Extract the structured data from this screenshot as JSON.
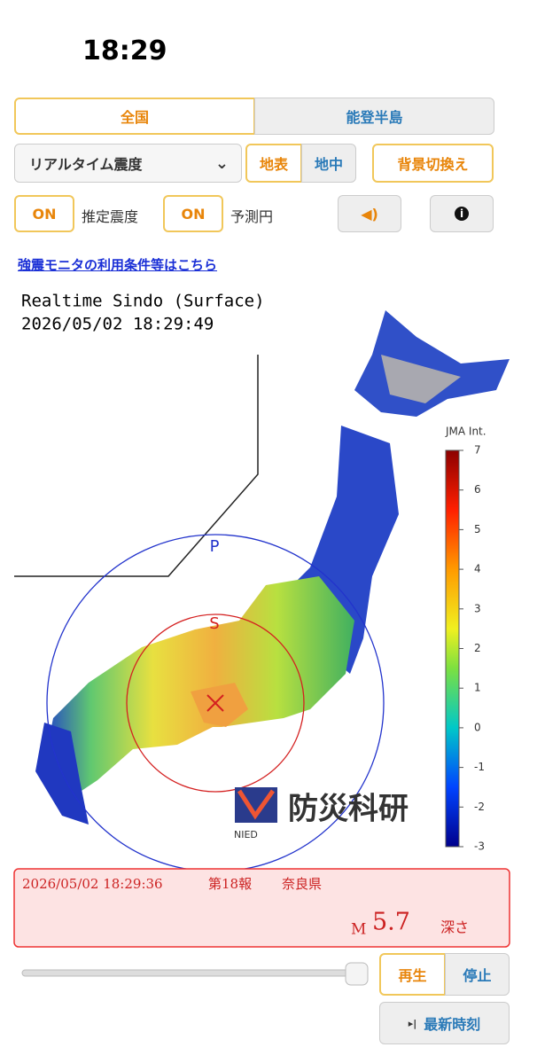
{
  "status": {
    "time": "18:29"
  },
  "tabs": [
    "全国",
    "能登半島"
  ],
  "controls": {
    "select": "リアルタイム震度",
    "surface": "地表",
    "underground": "地中",
    "background": "背景切換え",
    "toggle1": "ON",
    "toggle1_label": "推定震度",
    "toggle2": "ON",
    "toggle2_label": "予測円"
  },
  "link": "強震モニタの利用条件等はこちら",
  "map": {
    "title": "Realtime Sindo (Surface)",
    "timestamp": "2026/05/02 18:29:49",
    "scale_label": "JMA Int.",
    "scale_ticks": [
      7,
      6,
      5,
      4,
      3,
      2,
      1,
      0,
      -1,
      -2,
      -3
    ],
    "p_label": "P",
    "s_label": "S",
    "logo": "防災科研",
    "logo_sub": "NIED"
  },
  "report": {
    "datetime": "2026/05/02 18:29:36",
    "number": "第18報",
    "region": "奈良県",
    "magnitude_prefix": "M",
    "magnitude": "5.7",
    "depth_label": "深さ"
  },
  "playback": {
    "play": "再生",
    "stop": "停止",
    "latest": "最新時刻"
  }
}
